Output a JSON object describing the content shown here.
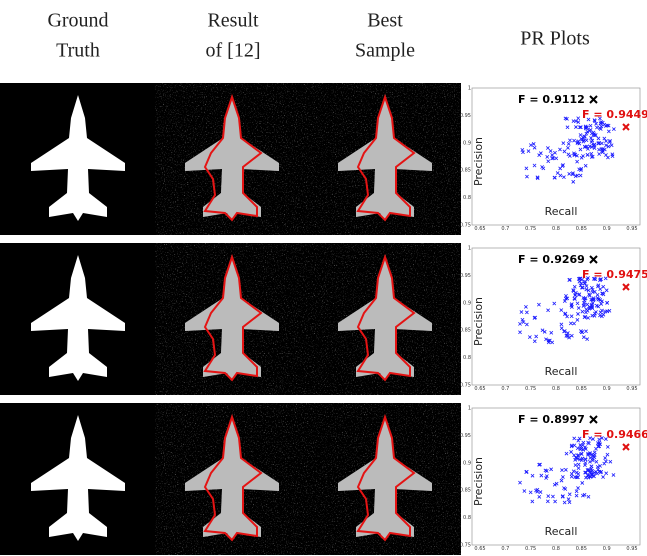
{
  "columns": [
    {
      "lines": [
        "Ground",
        "Truth"
      ]
    },
    {
      "lines": [
        "Result",
        "of [12]"
      ]
    },
    {
      "lines": [
        "Best",
        "Sample"
      ]
    },
    {
      "lines": [
        "PR Plots"
      ]
    }
  ],
  "plot": {
    "xlabel": "Recall",
    "ylabel": "Precision",
    "xticks": [
      "0.65",
      "0.7",
      "0.75",
      "0.8",
      "0.85",
      "0.9",
      "0.95"
    ],
    "yticks": [
      "0.75",
      "0.8",
      "0.85",
      "0.9",
      "0.95",
      "1"
    ]
  },
  "rows": [
    {
      "f_baseline": "F = 0.9112",
      "f_best": "F = 0.9449"
    },
    {
      "f_baseline": "F = 0.9269",
      "f_best": "F = 0.9475"
    },
    {
      "f_baseline": "F = 0.8997",
      "f_best": "F = 0.9466"
    }
  ]
}
